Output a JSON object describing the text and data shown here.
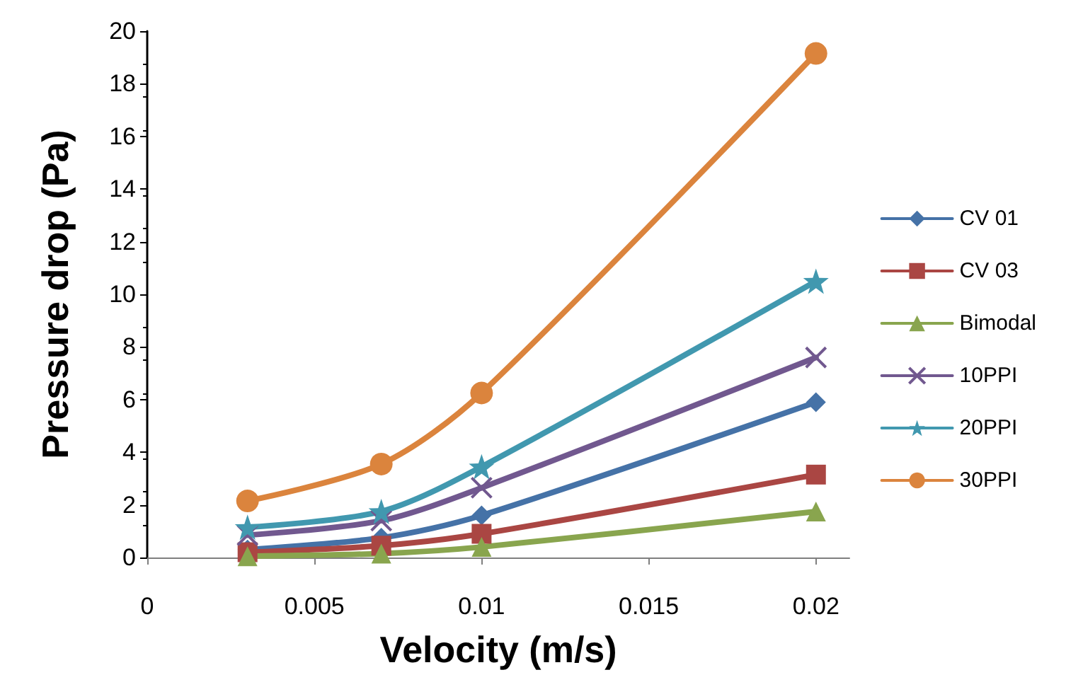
{
  "chart_data": {
    "type": "line",
    "xlabel": "Velocity (m/s)",
    "ylabel": "Pressure drop (Pa)",
    "x": [
      0.003,
      0.007,
      0.01,
      0.02
    ],
    "series": [
      {
        "name": "CV 01",
        "color": "#4572a7",
        "marker": "diamond",
        "values": [
          0.3,
          0.75,
          1.6,
          5.9
        ]
      },
      {
        "name": "CV 03",
        "color": "#aa4643",
        "marker": "square",
        "values": [
          0.2,
          0.45,
          0.9,
          3.15
        ]
      },
      {
        "name": "Bimodal",
        "color": "#89a54e",
        "marker": "triangle",
        "values": [
          0.05,
          0.15,
          0.4,
          1.75
        ]
      },
      {
        "name": "10PPI",
        "color": "#71588f",
        "marker": "cross",
        "values": [
          0.85,
          1.4,
          2.65,
          7.6
        ]
      },
      {
        "name": "20PPI",
        "color": "#4198af",
        "marker": "star",
        "values": [
          1.15,
          1.75,
          3.45,
          10.5
        ]
      },
      {
        "name": "30PPI",
        "color": "#db843d",
        "marker": "circle",
        "values": [
          2.15,
          3.55,
          6.25,
          19.15
        ]
      }
    ],
    "xlim": [
      0,
      0.021
    ],
    "xticks": [
      0,
      0.005,
      0.01,
      0.015,
      0.02
    ],
    "ylim": [
      0,
      20
    ],
    "yticks": [
      0,
      2,
      4,
      6,
      8,
      10,
      12,
      14,
      16,
      18,
      20
    ],
    "grid": false,
    "legend": "right",
    "line_style": "solid"
  }
}
